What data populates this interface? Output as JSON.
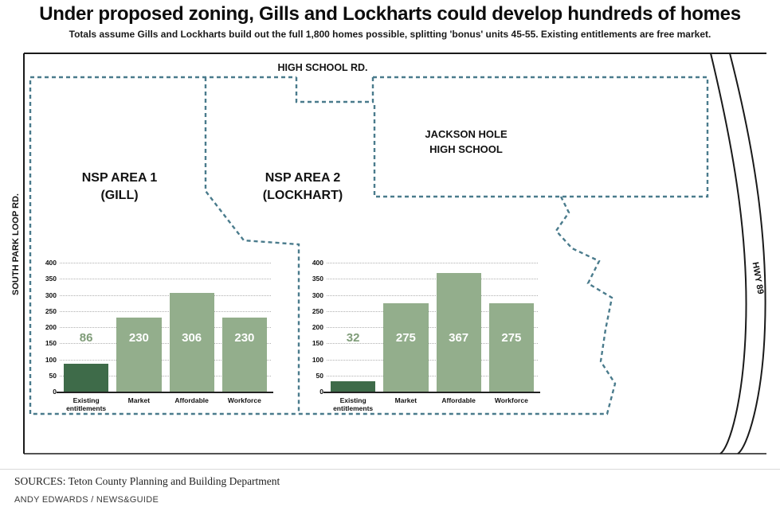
{
  "header": {
    "title": "Under proposed zoning, Gills and Lockharts could develop hundreds of homes",
    "subtitle": "Totals assume Gills and Lockharts build out the full 1,800 homes possible, splitting 'bonus' units 45-55. Existing entitlements are free market."
  },
  "map": {
    "road_top_label": "HIGH SCHOOL RD.",
    "road_left_label": "SOUTH PARK LOOP RD.",
    "road_right_label": "HWY 89",
    "area1_label_line1": "NSP AREA 1",
    "area1_label_line2": "(GILL)",
    "area2_label_line1": "NSP AREA 2",
    "area2_label_line2": "(LOCKHART)",
    "school_label_line1": "JACKSON HOLE",
    "school_label_line2": "HIGH SCHOOL"
  },
  "chart_data": [
    {
      "type": "bar",
      "name": "NSP Area 1 (Gill)",
      "categories": [
        "Existing entitlements",
        "Market",
        "Affordable",
        "Workforce"
      ],
      "values": [
        86,
        230,
        306,
        230
      ],
      "ylim": [
        0,
        400
      ],
      "ytick_step": 50,
      "grid": true,
      "legend": "none",
      "bar_colors": [
        "#3e6b49",
        "#93ae8c",
        "#93ae8c",
        "#93ae8c"
      ]
    },
    {
      "type": "bar",
      "name": "NSP Area 2 (Lockhart)",
      "categories": [
        "Existing entitlements",
        "Market",
        "Affordable",
        "Workforce"
      ],
      "values": [
        32,
        275,
        367,
        275
      ],
      "ylim": [
        0,
        400
      ],
      "ytick_step": 50,
      "grid": true,
      "legend": "none",
      "bar_colors": [
        "#3e6b49",
        "#93ae8c",
        "#93ae8c",
        "#93ae8c"
      ]
    }
  ],
  "footer": {
    "sources": "SOURCES: Teton County Planning and Building Department",
    "credit": "ANDY EDWARDS / NEWS&GUIDE"
  },
  "colors": {
    "dark_green": "#3e6b49",
    "light_green": "#93ae8c",
    "value_label_light": "#ffffff",
    "value_label_dark": "#7f9c78",
    "boundary_dashed": "#4a7b8c",
    "road_black": "#1a1a1a"
  }
}
